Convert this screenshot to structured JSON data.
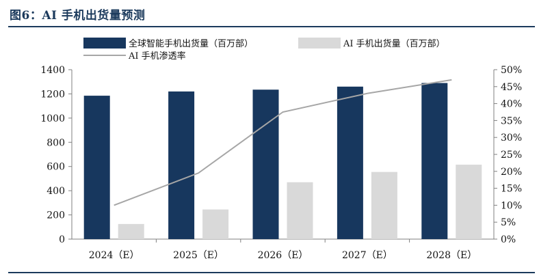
{
  "header": {
    "title": "图6：AI 手机出货量预测"
  },
  "chart_data": {
    "type": "bar",
    "categories": [
      "2024（E）",
      "2025（E）",
      "2026（E）",
      "2027（E）",
      "2028（E）"
    ],
    "series": [
      {
        "name": "全球智能手机出货量（百万部）",
        "kind": "bar",
        "axis": "left",
        "color": "#17375e",
        "values": [
          1185,
          1220,
          1235,
          1260,
          1290
        ]
      },
      {
        "name": "AI 手机出货量（百万部）",
        "kind": "bar",
        "axis": "left",
        "color": "#d9d9d9",
        "values": [
          125,
          245,
          470,
          555,
          615
        ]
      },
      {
        "name": "AI 手机渗透率",
        "kind": "line",
        "axis": "right",
        "color": "#a6a6a6",
        "values": [
          0.1,
          0.195,
          0.375,
          0.43,
          0.47
        ]
      }
    ],
    "ylim_left": [
      0,
      1400
    ],
    "yticks_left": [
      "0",
      "200",
      "400",
      "600",
      "800",
      "1000",
      "1200",
      "1400"
    ],
    "ylim_right": [
      0,
      0.5
    ],
    "yticks_right": [
      "0%",
      "5%",
      "10%",
      "15%",
      "20%",
      "25%",
      "30%",
      "35%",
      "40%",
      "45%",
      "50%"
    ],
    "grid": false,
    "legend_position": "top-left"
  }
}
